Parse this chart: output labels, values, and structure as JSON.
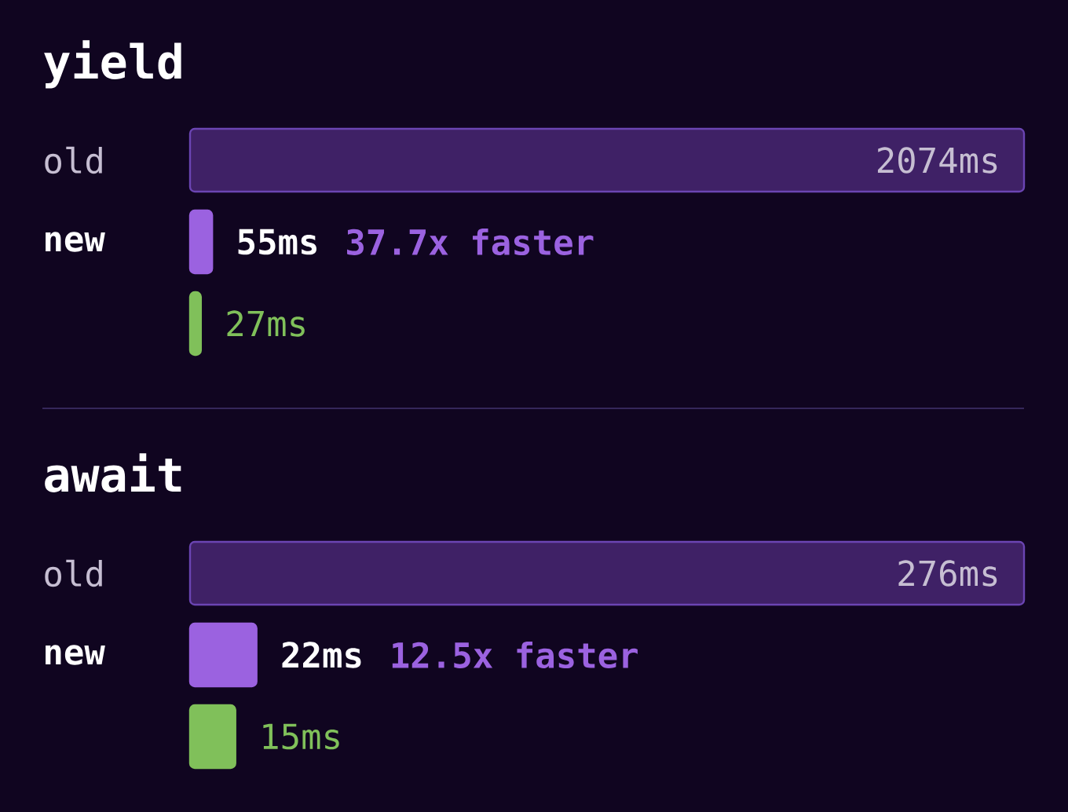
{
  "chart_data": [
    {
      "type": "bar",
      "orientation": "horizontal",
      "title": "yield",
      "categories": [
        "old",
        "new",
        null
      ],
      "values": [
        2074,
        55,
        27
      ],
      "colors": [
        "#3f2166",
        "#9b62e0",
        "#80c05a"
      ],
      "value_labels": [
        "2074ms",
        "55ms",
        "27ms"
      ],
      "annotations": [
        "37.7x faster"
      ],
      "tick_labels": "y"
    },
    {
      "type": "bar",
      "orientation": "horizontal",
      "title": "await",
      "categories": [
        "old",
        "new",
        null
      ],
      "values": [
        276,
        22,
        15
      ],
      "colors": [
        "#3f2166",
        "#9b62e0",
        "#80c05a"
      ],
      "value_labels": [
        "276ms",
        "22ms",
        "15ms"
      ],
      "annotations": [
        "12.5x faster"
      ],
      "tick_labels": "y"
    }
  ]
}
